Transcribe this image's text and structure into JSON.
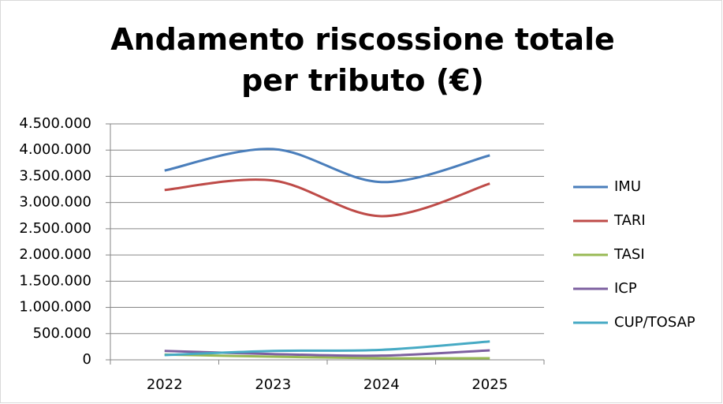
{
  "chart_data": {
    "type": "line",
    "title": "Andamento riscossione totale per tributo (€)",
    "categories": [
      "2022",
      "2023",
      "2024",
      "2025"
    ],
    "series": [
      {
        "name": "IMU",
        "color": "#4a7ebb",
        "values": [
          3610000,
          4020000,
          3390000,
          3900000
        ]
      },
      {
        "name": "TARI",
        "color": "#be4b48",
        "values": [
          3240000,
          3420000,
          2740000,
          3360000
        ]
      },
      {
        "name": "TASI",
        "color": "#98b954",
        "values": [
          100000,
          60000,
          30000,
          30000
        ]
      },
      {
        "name": "ICP",
        "color": "#7d60a0",
        "values": [
          170000,
          110000,
          80000,
          180000
        ]
      },
      {
        "name": "CUP/TOSAP",
        "color": "#46aac4",
        "values": [
          90000,
          170000,
          190000,
          350000
        ]
      }
    ],
    "ylim": [
      0,
      4500000
    ],
    "yticks": [
      0,
      {
        "value": 500000,
        "label": "500.000"
      },
      {
        "value": 1000000,
        "label": "1.000.000"
      },
      {
        "value": 1500000,
        "label": "1.500.000"
      },
      {
        "value": 2000000,
        "label": "2.000.000"
      },
      {
        "value": 2500000,
        "label": "2.500.000"
      },
      {
        "value": 3000000,
        "label": "3.000.000"
      },
      {
        "value": 3500000,
        "label": "3.500.000"
      },
      {
        "value": 4000000,
        "label": "4.000.000"
      },
      {
        "value": 4500000,
        "label": "4.500.000"
      }
    ],
    "grid": true,
    "smooth": true,
    "legend": "right"
  }
}
